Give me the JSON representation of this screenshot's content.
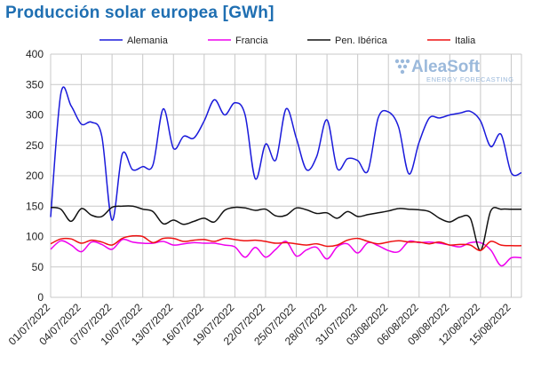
{
  "title": "Producción solar europea [GWh]",
  "logo": {
    "name": "AleaSoft",
    "tagline": "ENERGY FORECASTING",
    "color": "#9bb9db"
  },
  "chart_data": {
    "type": "line",
    "title": "Producción solar europea [GWh]",
    "xlabel": "",
    "ylabel": "",
    "ylim": [
      0,
      400
    ],
    "yticks": [
      "0",
      "50",
      "100",
      "150",
      "200",
      "250",
      "300",
      "350",
      "400"
    ],
    "x": [
      "01/07/2022",
      "02/07/2022",
      "03/07/2022",
      "04/07/2022",
      "05/07/2022",
      "06/07/2022",
      "07/07/2022",
      "08/07/2022",
      "09/07/2022",
      "10/07/2022",
      "11/07/2022",
      "12/07/2022",
      "13/07/2022",
      "14/07/2022",
      "15/07/2022",
      "16/07/2022",
      "17/07/2022",
      "18/07/2022",
      "19/07/2022",
      "20/07/2022",
      "21/07/2022",
      "22/07/2022",
      "23/07/2022",
      "24/07/2022",
      "25/07/2022",
      "26/07/2022",
      "27/07/2022",
      "28/07/2022",
      "29/07/2022",
      "30/07/2022",
      "31/07/2022",
      "01/08/2022",
      "02/08/2022",
      "03/08/2022",
      "04/08/2022",
      "05/08/2022",
      "06/08/2022",
      "07/08/2022",
      "08/08/2022",
      "09/08/2022",
      "10/08/2022",
      "11/08/2022",
      "12/08/2022",
      "13/08/2022",
      "14/08/2022",
      "15/08/2022",
      "16/08/2022"
    ],
    "xtick_labels": [
      "01/07/2022",
      "04/07/2022",
      "07/07/2022",
      "10/07/2022",
      "13/07/2022",
      "16/07/2022",
      "19/07/2022",
      "22/07/2022",
      "25/07/2022",
      "28/07/2022",
      "31/07/2022",
      "03/08/2022",
      "06/08/2022",
      "09/08/2022",
      "12/08/2022",
      "15/08/2022"
    ],
    "grid": true,
    "legend_position": "top",
    "series": [
      {
        "name": "Alemania",
        "color": "#1a1adb",
        "values": [
          132,
          335,
          315,
          285,
          288,
          265,
          127,
          236,
          210,
          215,
          218,
          310,
          245,
          265,
          262,
          290,
          325,
          300,
          320,
          300,
          195,
          252,
          226,
          310,
          262,
          210,
          232,
          292,
          212,
          228,
          225,
          208,
          295,
          305,
          280,
          203,
          255,
          295,
          295,
          300,
          303,
          306,
          290,
          248,
          268,
          205,
          205
        ]
      },
      {
        "name": "Francia",
        "color": "#ee00ee",
        "values": [
          79,
          93,
          86,
          75,
          91,
          87,
          79,
          95,
          91,
          89,
          89,
          92,
          86,
          88,
          90,
          89,
          89,
          86,
          83,
          66,
          82,
          66,
          79,
          92,
          68,
          78,
          82,
          63,
          83,
          88,
          73,
          90,
          85,
          77,
          75,
          92,
          90,
          91,
          89,
          86,
          83,
          90,
          90,
          78,
          52,
          65,
          65
        ]
      },
      {
        "name": "Pen. Ibérica",
        "color": "#111111",
        "values": [
          148,
          145,
          125,
          146,
          135,
          133,
          148,
          150,
          150,
          145,
          141,
          121,
          127,
          120,
          125,
          130,
          124,
          143,
          148,
          147,
          143,
          145,
          134,
          135,
          147,
          144,
          138,
          139,
          130,
          141,
          133,
          136,
          139,
          142,
          146,
          145,
          144,
          141,
          130,
          124,
          132,
          130,
          77,
          142,
          145,
          145,
          145
        ]
      },
      {
        "name": "Italia",
        "color": "#ee1111",
        "values": [
          88,
          96,
          96,
          89,
          94,
          91,
          86,
          97,
          101,
          100,
          90,
          97,
          97,
          92,
          94,
          95,
          92,
          97,
          95,
          93,
          94,
          92,
          89,
          90,
          88,
          86,
          88,
          84,
          86,
          94,
          97,
          92,
          88,
          91,
          93,
          91,
          91,
          88,
          91,
          86,
          87,
          86,
          77,
          92,
          86,
          85,
          85
        ]
      }
    ]
  }
}
